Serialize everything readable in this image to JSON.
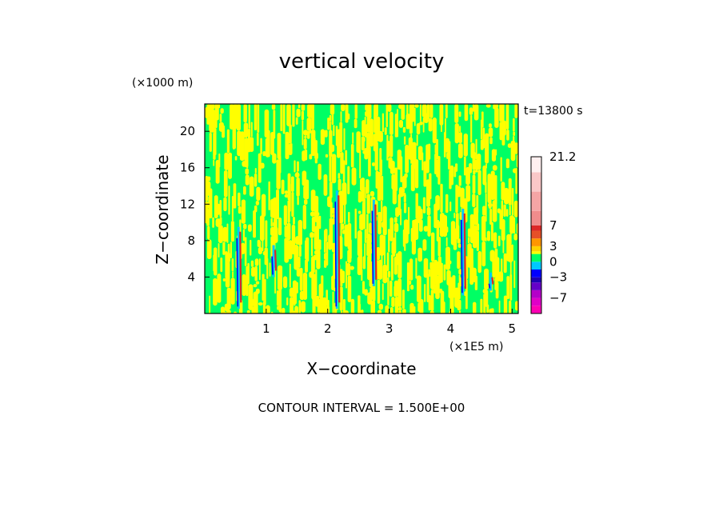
{
  "chart_data": {
    "type": "heatmap",
    "title": "vertical velocity",
    "xlabel": "X−coordinate",
    "ylabel": "Z−coordinate",
    "x_unit": "(×1E5 m)",
    "y_unit": "(×1000 m)",
    "time_label": "t=13800 s",
    "footer": "CONTOUR INTERVAL = 1.500E+00",
    "xlim": [
      0,
      5.1
    ],
    "ylim": [
      0,
      23
    ],
    "xticks": [
      1,
      2,
      3,
      4,
      5
    ],
    "xtick_labels": [
      "1",
      "2",
      "3",
      "4",
      "5"
    ],
    "yticks": [
      4,
      8,
      12,
      16,
      20
    ],
    "ytick_labels": [
      "4",
      "8",
      "12",
      "16",
      "20"
    ],
    "colorbar": {
      "tick_labels": [
        "21.2",
        "7",
        "3",
        "0",
        "−3",
        "−7"
      ],
      "tick_values": [
        21.2,
        7,
        3,
        0,
        -3,
        -7
      ],
      "levels": [
        {
          "value": -10,
          "color": "#ff00b4"
        },
        {
          "value": -8.5,
          "color": "#e000c8"
        },
        {
          "value": -7,
          "color": "#b400c8"
        },
        {
          "value": -5.5,
          "color": "#6400c8"
        },
        {
          "value": -4,
          "color": "#1e00b4"
        },
        {
          "value": -3,
          "color": "#0000ff"
        },
        {
          "value": -1.5,
          "color": "#00c8ff"
        },
        {
          "value": 0,
          "color": "#00ff64"
        },
        {
          "value": 1.5,
          "color": "#ffff00"
        },
        {
          "value": 2,
          "color": "#ffd200"
        },
        {
          "value": 3,
          "color": "#ff9600"
        },
        {
          "value": 4.5,
          "color": "#e65028"
        },
        {
          "value": 6,
          "color": "#dc2828"
        },
        {
          "value": 7,
          "color": "#f08c8c"
        },
        {
          "value": 10,
          "color": "#f5a5a5"
        },
        {
          "value": 14,
          "color": "#fac8c8"
        },
        {
          "value": 18,
          "color": "#fff0f0"
        }
      ]
    },
    "field_colors": {
      "dominant_a": "#00ff64",
      "dominant_b": "#ffff00",
      "updraft": "#dc2828",
      "downdraft": "#0000ff",
      "weak_down": "#00c8ff"
    },
    "strong_features": [
      {
        "x": 0.55,
        "z_min": 0.5,
        "z_max": 9.5
      },
      {
        "x": 1.12,
        "z_min": 4.0,
        "z_max": 7.5
      },
      {
        "x": 2.15,
        "z_min": 0.5,
        "z_max": 13.5
      },
      {
        "x": 2.75,
        "z_min": 3.0,
        "z_max": 12.5
      },
      {
        "x": 4.2,
        "z_min": 2.0,
        "z_max": 11.5
      },
      {
        "x": 4.65,
        "z_min": 2.5,
        "z_max": 4.5
      }
    ]
  }
}
